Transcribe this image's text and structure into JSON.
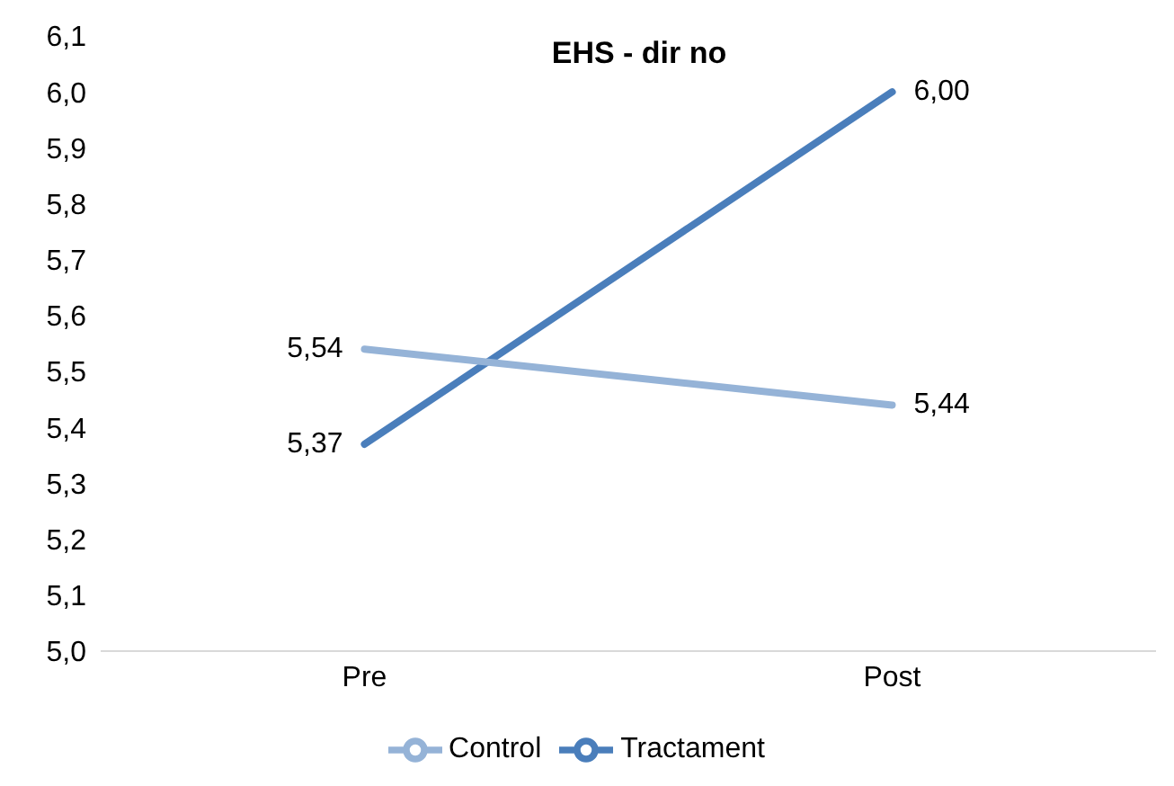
{
  "chart_data": {
    "type": "line",
    "title": "EHS - dir no",
    "categories": [
      "Pre",
      "Post"
    ],
    "series": [
      {
        "name": "Tractament",
        "color": "#4a7ebb",
        "values": [
          5.37,
          6.0
        ],
        "value_labels": [
          "5,37",
          "6,00"
        ]
      },
      {
        "name": "Control",
        "color": "#95b3d7",
        "values": [
          5.54,
          5.44
        ],
        "value_labels": [
          "5,54",
          "5,44"
        ]
      }
    ],
    "ylim": [
      5.0,
      6.1
    ],
    "yticks": [
      {
        "value": 5.0,
        "label": "5,0"
      },
      {
        "value": 5.1,
        "label": "5,1"
      },
      {
        "value": 5.2,
        "label": "5,2"
      },
      {
        "value": 5.3,
        "label": "5,3"
      },
      {
        "value": 5.4,
        "label": "5,4"
      },
      {
        "value": 5.5,
        "label": "5,5"
      },
      {
        "value": 5.6,
        "label": "5,6"
      },
      {
        "value": 5.7,
        "label": "5,7"
      },
      {
        "value": 5.8,
        "label": "5,8"
      },
      {
        "value": 5.9,
        "label": "5,9"
      },
      {
        "value": 6.0,
        "label": "6,0"
      },
      {
        "value": 6.1,
        "label": "6,1"
      }
    ],
    "grid": false,
    "legend": "bottom",
    "marker": "none",
    "line_style": "solid"
  }
}
